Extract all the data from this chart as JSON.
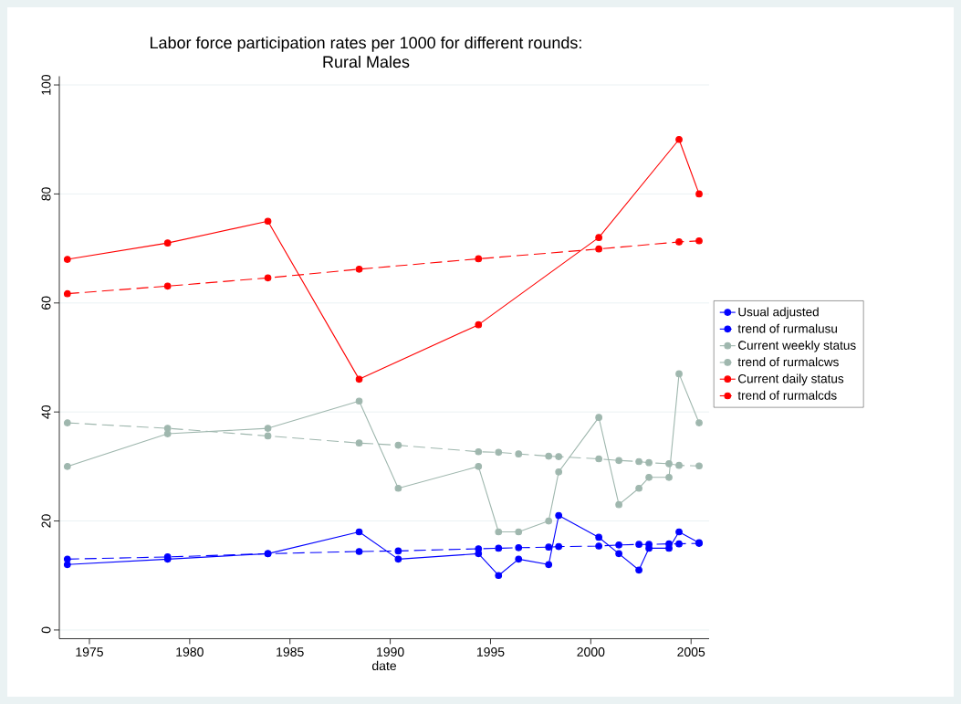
{
  "chart_data": {
    "type": "line",
    "title": "Labor force participation rates per 1000 for different rounds:",
    "subtitle": "Rural Males",
    "xlabel": "date",
    "xlim": [
      1973.5,
      2005.9
    ],
    "xticks": [
      1975,
      1980,
      1985,
      1990,
      1995,
      2000,
      2005
    ],
    "ylim": [
      -1.6,
      101.6
    ],
    "yticks": [
      0,
      20,
      40,
      60,
      80,
      100
    ],
    "grid": "y",
    "legend": "right",
    "marker": "circle",
    "series": [
      {
        "name": "Usual adjusted",
        "color": "#0000ff",
        "line_style": "solid",
        "x": [
          1973.9,
          1978.9,
          1983.9,
          1988.45,
          1990.4,
          1994.4,
          1995.4,
          1996.4,
          1997.9,
          1998.4,
          2000.4,
          2001.4,
          2002.4,
          2002.9,
          2003.9,
          2004.4,
          2005.4
        ],
        "values": [
          12,
          13,
          14,
          18,
          13,
          14,
          10,
          13,
          12,
          21,
          17,
          14,
          11,
          15,
          15,
          18,
          16
        ]
      },
      {
        "name": "trend of rurmalusu",
        "color": "#0000ff",
        "line_style": "dashed",
        "x": [
          1973.9,
          1978.9,
          1983.9,
          1988.45,
          1990.4,
          1994.4,
          1995.4,
          1996.4,
          1997.9,
          1998.4,
          2000.4,
          2001.4,
          2002.4,
          2002.9,
          2003.9,
          2004.4,
          2005.4
        ],
        "values": [
          13,
          13.4,
          14,
          14.4,
          14.5,
          14.9,
          15,
          15.1,
          15.2,
          15.3,
          15.4,
          15.6,
          15.7,
          15.7,
          15.8,
          15.8,
          15.9
        ]
      },
      {
        "name": "Current weekly status",
        "color": "#9fb7ae",
        "line_style": "solid",
        "x": [
          1973.9,
          1978.9,
          1983.9,
          1988.45,
          1990.4,
          1994.4,
          1995.4,
          1996.4,
          1997.9,
          1998.4,
          2000.4,
          2001.4,
          2002.4,
          2002.9,
          2003.9,
          2004.4,
          2005.4
        ],
        "values": [
          30,
          36,
          37,
          42,
          26,
          30,
          18,
          18,
          20,
          29,
          39,
          23,
          26,
          28,
          28,
          47,
          38
        ]
      },
      {
        "name": "trend of rurmalcws",
        "color": "#9fb7ae",
        "line_style": "dashed",
        "x": [
          1973.9,
          1978.9,
          1983.9,
          1988.45,
          1990.4,
          1994.4,
          1995.4,
          1996.4,
          1997.9,
          1998.4,
          2000.4,
          2001.4,
          2002.4,
          2002.9,
          2003.9,
          2004.4,
          2005.4
        ],
        "values": [
          38,
          37,
          35.6,
          34.3,
          33.9,
          32.7,
          32.6,
          32.3,
          31.9,
          31.8,
          31.4,
          31.1,
          30.9,
          30.7,
          30.5,
          30.2,
          30.1
        ]
      },
      {
        "name": "Current daily status",
        "color": "#ff0000",
        "line_style": "solid",
        "x": [
          1973.9,
          1978.9,
          1983.9,
          1988.45,
          1994.4,
          2000.4,
          2004.4,
          2005.4
        ],
        "values": [
          68,
          71,
          75,
          46,
          56,
          72,
          90,
          80
        ]
      },
      {
        "name": "trend of rurmalcds",
        "color": "#ff0000",
        "line_style": "dashed",
        "x": [
          1973.9,
          1978.9,
          1983.9,
          1988.45,
          1994.4,
          2000.4,
          2004.4,
          2005.4
        ],
        "values": [
          61.7,
          63.1,
          64.6,
          66.2,
          68.1,
          69.9,
          71.2,
          71.4
        ]
      }
    ]
  }
}
